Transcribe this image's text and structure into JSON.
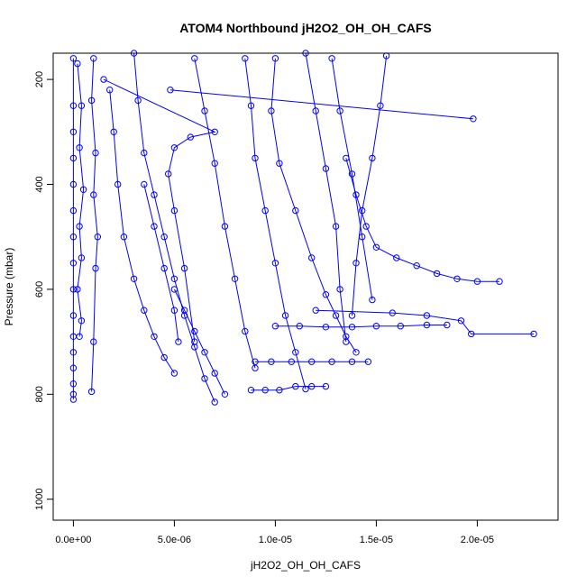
{
  "chart_data": {
    "type": "scatter",
    "title": "ATOM4 Northbound jH2O2_OH_OH_CAFS",
    "xlabel": "jH2O2_OH_OH_CAFS",
    "ylabel": "Pressure (mbar)",
    "xlim": [
      -1e-06,
      2.4e-05
    ],
    "ylim": [
      1040,
      150
    ],
    "y_reversed": true,
    "grid": false,
    "legend": "none",
    "marker": "open-circle",
    "connected": true,
    "color": "#0000ff",
    "x_ticks": [
      {
        "value": 0,
        "label": "0.0e+00"
      },
      {
        "value": 5e-06,
        "label": "5.0e-06"
      },
      {
        "value": 1e-05,
        "label": "1.0e-05"
      },
      {
        "value": 1.5e-05,
        "label": "1.5e-05"
      },
      {
        "value": 2e-05,
        "label": "2.0e-05"
      }
    ],
    "y_ticks": [
      {
        "value": 200,
        "label": "200"
      },
      {
        "value": 400,
        "label": "400"
      },
      {
        "value": 600,
        "label": "600"
      },
      {
        "value": 800,
        "label": "800"
      },
      {
        "value": 1000,
        "label": "1000"
      }
    ],
    "series": [
      {
        "x": [
          0,
          0,
          0,
          0,
          0,
          0,
          0,
          0,
          0,
          0,
          0,
          0,
          0,
          0,
          0,
          0
        ],
        "y": [
          160,
          250,
          300,
          350,
          400,
          450,
          500,
          550,
          600,
          650,
          690,
          720,
          750,
          780,
          800,
          810
        ]
      },
      {
        "x": [
          2e-07,
          4e-07,
          3e-07,
          5e-07,
          3e-07,
          4e-07,
          2e-07,
          4e-07,
          3e-07
        ],
        "y": [
          170,
          250,
          330,
          410,
          480,
          540,
          600,
          660,
          690
        ]
      },
      {
        "x": [
          1e-06,
          9e-07,
          1.1e-06,
          1e-06,
          1.2e-06,
          1.1e-06,
          1e-06,
          9e-07
        ],
        "y": [
          160,
          240,
          340,
          420,
          500,
          560,
          700,
          795
        ]
      },
      {
        "x": [
          1.8e-06,
          2e-06,
          2.2e-06,
          2.5e-06,
          3e-06,
          3.5e-06,
          4e-06,
          4.5e-06,
          5e-06
        ],
        "y": [
          220,
          300,
          400,
          500,
          580,
          640,
          690,
          730,
          760
        ]
      },
      {
        "x": [
          3e-06,
          3.2e-06,
          3.5e-06,
          4e-06,
          4.5e-06,
          5e-06,
          5.5e-06,
          6e-06,
          6.5e-06,
          7e-06
        ],
        "y": [
          150,
          240,
          340,
          420,
          500,
          580,
          650,
          710,
          770,
          815
        ]
      },
      {
        "x": [
          1.5e-06,
          7e-06,
          5.8e-06,
          5e-06,
          4.7e-06,
          5e-06,
          5.5e-06,
          6e-06
        ],
        "y": [
          200,
          300,
          310,
          330,
          380,
          450,
          560,
          700
        ]
      },
      {
        "x": [
          6e-06,
          6.5e-06,
          7e-06,
          7.5e-06,
          8e-06,
          8.5e-06,
          9e-06
        ],
        "y": [
          160,
          260,
          360,
          480,
          580,
          680,
          750
        ]
      },
      {
        "x": [
          4.8e-06,
          1.98e-05
        ],
        "y": [
          220,
          275
        ]
      },
      {
        "x": [
          8.5e-06,
          8.8e-06,
          9e-06,
          9.5e-06,
          1e-05,
          1.05e-05,
          1.1e-05,
          1.15e-05
        ],
        "y": [
          160,
          250,
          350,
          450,
          550,
          650,
          720,
          790
        ]
      },
      {
        "x": [
          1e-05,
          9.8e-06,
          1.02e-05,
          1.1e-05,
          1.18e-05,
          1.25e-05,
          1.3e-05,
          1.35e-05,
          1.4e-05
        ],
        "y": [
          160,
          260,
          360,
          450,
          540,
          610,
          650,
          690,
          720
        ]
      },
      {
        "x": [
          1.15e-05,
          1.2e-05,
          1.25e-05,
          1.3e-05,
          1.32e-05,
          1.35e-05
        ],
        "y": [
          150,
          260,
          370,
          480,
          600,
          700
        ]
      },
      {
        "x": [
          1.35e-05,
          1.4e-05,
          1.45e-05,
          1.5e-05,
          1.6e-05,
          1.7e-05,
          1.8e-05,
          1.9e-05,
          2e-05,
          2.11e-05
        ],
        "y": [
          350,
          420,
          480,
          520,
          540,
          555,
          570,
          580,
          585,
          585
        ]
      },
      {
        "x": [
          1.2e-05,
          1.58e-05,
          1.75e-05,
          1.92e-05,
          1.97e-05,
          2.28e-05
        ],
        "y": [
          640,
          645,
          650,
          660,
          685,
          685
        ]
      },
      {
        "x": [
          1e-05,
          1.12e-05,
          1.25e-05,
          1.38e-05,
          1.5e-05,
          1.62e-05,
          1.75e-05,
          1.85e-05
        ],
        "y": [
          670,
          670,
          672,
          672,
          670,
          670,
          668,
          668
        ]
      },
      {
        "x": [
          9e-06,
          9.8e-06,
          1.08e-05,
          1.18e-05,
          1.28e-05,
          1.38e-05,
          1.46e-05
        ],
        "y": [
          738,
          738,
          738,
          738,
          738,
          738,
          738
        ]
      },
      {
        "x": [
          8.8e-06,
          9.5e-06,
          1.02e-05,
          1.1e-05,
          1.18e-05,
          1.25e-05
        ],
        "y": [
          792,
          792,
          792,
          785,
          785,
          785
        ]
      },
      {
        "x": [
          5e-06,
          5.5e-06,
          6e-06,
          6.5e-06,
          7e-06,
          7.5e-06
        ],
        "y": [
          600,
          640,
          680,
          720,
          760,
          800
        ]
      },
      {
        "x": [
          3.5e-06,
          4e-06,
          4.5e-06,
          5e-06,
          5.2e-06
        ],
        "y": [
          400,
          480,
          560,
          640,
          700
        ]
      },
      {
        "x": [
          1.55e-05,
          1.52e-05,
          1.48e-05,
          1.43e-05,
          1.4e-05,
          1.38e-05
        ],
        "y": [
          155,
          250,
          350,
          450,
          550,
          650
        ]
      },
      {
        "x": [
          1.28e-05,
          1.32e-05,
          1.38e-05,
          1.43e-05,
          1.48e-05
        ],
        "y": [
          160,
          260,
          380,
          500,
          620
        ]
      }
    ]
  }
}
